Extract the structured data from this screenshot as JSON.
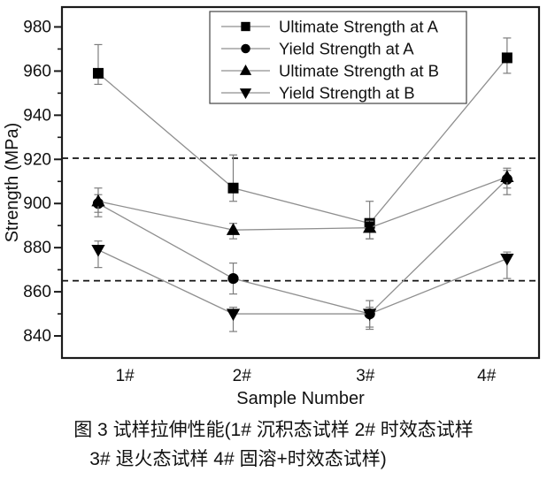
{
  "figure": {
    "caption_line1": "图 3  试样拉伸性能(1# 沉积态试样 2# 时效态试样",
    "caption_line2": "3# 退火态试样 4# 固溶+时效态试样)"
  },
  "chart_data": {
    "type": "line",
    "title": "",
    "xlabel": "Sample Number",
    "ylabel": "Strength (MPa)",
    "categories": [
      "1#",
      "2#",
      "3#",
      "4#"
    ],
    "ylim": [
      830,
      989
    ],
    "yticks": [
      840,
      860,
      880,
      900,
      920,
      940,
      960,
      980
    ],
    "minor_yticks": [
      850,
      870,
      890,
      910,
      930,
      950,
      970
    ],
    "grid": false,
    "legend_position": "top-right-inside",
    "reference_lines": [
      920.5,
      865
    ],
    "series": [
      {
        "name": "Ultimate Strength at A",
        "marker": "square",
        "values": [
          959,
          907,
          891,
          966
        ],
        "err_up": [
          13,
          15,
          10,
          9
        ],
        "err_down": [
          5,
          6,
          7,
          7
        ]
      },
      {
        "name": "Yield Strength at A",
        "marker": "circle",
        "values": [
          900,
          866,
          850,
          911
        ],
        "err_up": [
          4,
          7,
          6,
          4
        ],
        "err_down": [
          6,
          7,
          6,
          7
        ]
      },
      {
        "name": "Ultimate Strength at B",
        "marker": "triangle-up",
        "values": [
          901,
          888,
          889,
          912
        ],
        "err_up": [
          6,
          3,
          3,
          4
        ],
        "err_down": [
          5,
          4,
          5,
          5
        ]
      },
      {
        "name": "Yield Strength at B",
        "marker": "triangle-down",
        "values": [
          879,
          850,
          850,
          875
        ],
        "err_up": [
          4,
          3,
          3,
          3
        ],
        "err_down": [
          8,
          8,
          7,
          9
        ]
      }
    ],
    "colors": {
      "marker": "#000000",
      "line": "#8f8f8f",
      "error_bar": "#7d7d7d",
      "dashed_line": "#111111",
      "axis": "#1a1a1a",
      "background": "#ffffff"
    }
  }
}
